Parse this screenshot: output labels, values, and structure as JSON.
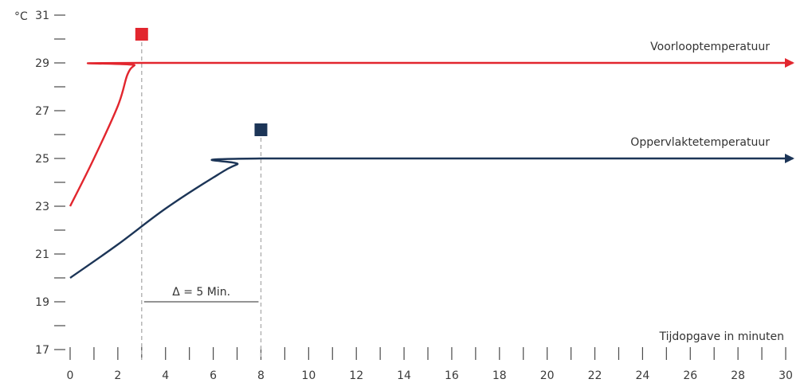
{
  "chart_data": {
    "type": "line",
    "y_unit": "°C",
    "xlabel": "Tijdopgave in minuten",
    "ylim": [
      17,
      31
    ],
    "xlim": [
      0,
      30
    ],
    "y_ticks_labeled": [
      "31",
      "29",
      "27",
      "25",
      "23",
      "21",
      "19",
      "17"
    ],
    "x_ticks_labeled": [
      "0",
      "2",
      "4",
      "6",
      "8",
      "10",
      "12",
      "14",
      "16",
      "18",
      "20",
      "22",
      "24",
      "26",
      "28",
      "30"
    ],
    "series": [
      {
        "name": "Voorlooptemperatuur",
        "color": "#e2262e",
        "points": [
          [
            0,
            23
          ],
          [
            1,
            25
          ],
          [
            2,
            27.2
          ],
          [
            2.4,
            28.5
          ],
          [
            2.7,
            28.9
          ],
          [
            3,
            29
          ],
          [
            30.3,
            29
          ]
        ],
        "marker_x": 3,
        "marker_y": 30.2
      },
      {
        "name": "Oppervlaktetemperatuur",
        "color": "#1c3557",
        "points": [
          [
            0,
            20
          ],
          [
            2,
            21.4
          ],
          [
            4,
            22.9
          ],
          [
            6,
            24.2
          ],
          [
            7,
            24.75
          ],
          [
            8,
            25
          ],
          [
            30.3,
            25
          ]
        ],
        "marker_x": 8,
        "marker_y": 26.2
      }
    ],
    "annotations": [
      {
        "text": "Δ = 5 Min.",
        "from_x": 3,
        "to_x": 8,
        "at_y": 19
      }
    ],
    "grid": false
  }
}
